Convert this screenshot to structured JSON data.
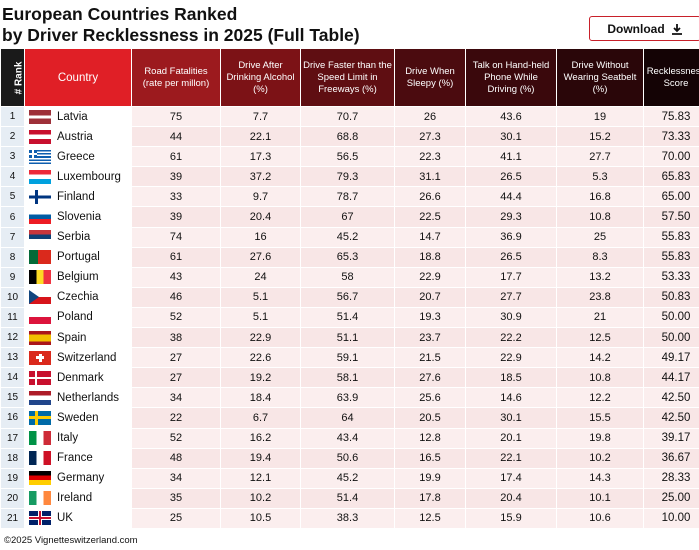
{
  "title_line1": "European Countries Ranked",
  "title_line2": "by Driver Recklessness in 2025 (Full Table)",
  "download_label": "Download",
  "download_icon": "download-icon",
  "headers": [
    "# Rank",
    "Country",
    "Road Fatalities (rate per millon)",
    "Drive After Drinking Alcohol (%)",
    "Drive Faster than the Speed Limit in Freeways (%)",
    "Drive When Sleepy (%)",
    "Talk on Hand-held Phone While Driving (%)",
    "Drive Without Wearing Seatbelt (%)",
    "Recklessness Score"
  ],
  "header_colors": [
    "#1a1a1a",
    "#e01f26",
    "#9c1a1e",
    "#7c1216",
    "#5f0e12",
    "#4b0b0f",
    "#3a080c",
    "#2a0609",
    "#140305"
  ],
  "rows": [
    [
      "1",
      "Latvia",
      "75",
      "7.7",
      "70.7",
      "26",
      "43.6",
      "19",
      "75.83"
    ],
    [
      "2",
      "Austria",
      "44",
      "22.1",
      "68.8",
      "27.3",
      "30.1",
      "15.2",
      "73.33"
    ],
    [
      "3",
      "Greece",
      "61",
      "17.3",
      "56.5",
      "22.3",
      "41.1",
      "27.7",
      "70.00"
    ],
    [
      "4",
      "Luxembourg",
      "39",
      "37.2",
      "79.3",
      "31.1",
      "26.5",
      "5.3",
      "65.83"
    ],
    [
      "5",
      "Finland",
      "33",
      "9.7",
      "78.7",
      "26.6",
      "44.4",
      "16.8",
      "65.00"
    ],
    [
      "6",
      "Slovenia",
      "39",
      "20.4",
      "67",
      "22.5",
      "29.3",
      "10.8",
      "57.50"
    ],
    [
      "7",
      "Serbia",
      "74",
      "16",
      "45.2",
      "14.7",
      "36.9",
      "25",
      "55.83"
    ],
    [
      "8",
      "Portugal",
      "61",
      "27.6",
      "65.3",
      "18.8",
      "26.5",
      "8.3",
      "55.83"
    ],
    [
      "9",
      "Belgium",
      "43",
      "24",
      "58",
      "22.9",
      "17.7",
      "13.2",
      "53.33"
    ],
    [
      "10",
      "Czechia",
      "46",
      "5.1",
      "56.7",
      "20.7",
      "27.7",
      "23.8",
      "50.83"
    ],
    [
      "11",
      "Poland",
      "52",
      "5.1",
      "51.4",
      "19.3",
      "30.9",
      "21",
      "50.00"
    ],
    [
      "12",
      "Spain",
      "38",
      "22.9",
      "51.1",
      "23.7",
      "22.2",
      "12.5",
      "50.00"
    ],
    [
      "13",
      "Switzerland",
      "27",
      "22.6",
      "59.1",
      "21.5",
      "22.9",
      "14.2",
      "49.17"
    ],
    [
      "14",
      "Denmark",
      "27",
      "19.2",
      "58.1",
      "27.6",
      "18.5",
      "10.8",
      "44.17"
    ],
    [
      "15",
      "Netherlands",
      "34",
      "18.4",
      "63.9",
      "25.6",
      "14.6",
      "12.2",
      "42.50"
    ],
    [
      "16",
      "Sweden",
      "22",
      "6.7",
      "64",
      "20.5",
      "30.1",
      "15.5",
      "42.50"
    ],
    [
      "17",
      "Italy",
      "52",
      "16.2",
      "43.4",
      "12.8",
      "20.1",
      "19.8",
      "39.17"
    ],
    [
      "18",
      "France",
      "48",
      "19.4",
      "50.6",
      "16.5",
      "22.1",
      "10.2",
      "36.67"
    ],
    [
      "19",
      "Germany",
      "34",
      "12.1",
      "45.2",
      "19.9",
      "17.4",
      "14.3",
      "28.33"
    ],
    [
      "20",
      "Ireland",
      "35",
      "10.2",
      "51.4",
      "17.8",
      "20.4",
      "10.1",
      "25.00"
    ],
    [
      "21",
      "UK",
      "25",
      "10.5",
      "38.3",
      "12.5",
      "15.9",
      "10.6",
      "10.00"
    ]
  ],
  "footer": "©2025 Vignetteswitzerland.com"
}
